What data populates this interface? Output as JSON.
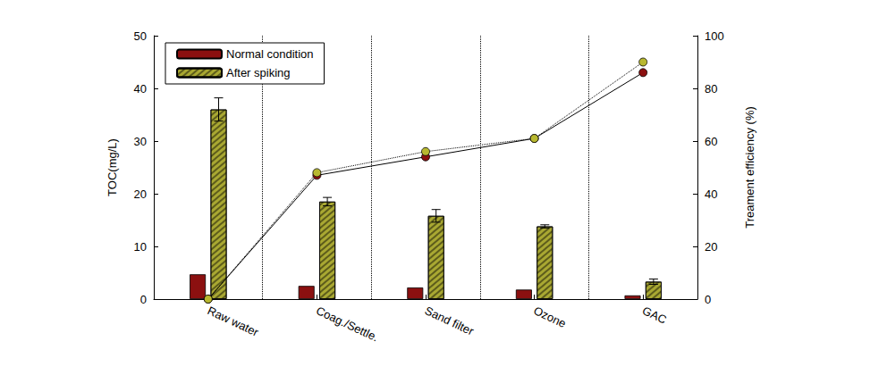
{
  "chart_data": {
    "type": "bar",
    "categories": [
      "Raw water",
      "Coag./Settle.",
      "Sand filter",
      "Ozone",
      "GAC"
    ],
    "y_label": "TOC(mg/L)",
    "y2_label": "Treament efficiency (%)",
    "ylim": [
      0,
      50
    ],
    "yticks": [
      0,
      10,
      20,
      30,
      40,
      50
    ],
    "y2lim": [
      0,
      100
    ],
    "y2ticks": [
      0,
      20,
      40,
      60,
      80,
      100
    ],
    "grid": true,
    "legend": "upper left",
    "series": [
      {
        "name": "Normal condition",
        "type": "bar",
        "color": "#8b1010",
        "values": [
          4.7,
          2.5,
          2.2,
          1.8,
          0.7
        ]
      },
      {
        "name": "After spiking",
        "type": "bar",
        "color": "#a9a832",
        "values": [
          36,
          18.5,
          15.8,
          13.8,
          3.3
        ],
        "errors": [
          2.2,
          0.8,
          1.2,
          0.3,
          0.5
        ]
      },
      {
        "name": "Normal condition",
        "type": "line",
        "axis": "y2",
        "color": "#8b1010",
        "marker": "circle",
        "line_style": "solid",
        "values": [
          0,
          47,
          54,
          61,
          86
        ]
      },
      {
        "name": "After spiking",
        "type": "line",
        "axis": "y2",
        "color": "#b8b830",
        "marker": "circle",
        "line_style": "dotted",
        "values": [
          0,
          48,
          56,
          61,
          90
        ]
      }
    ]
  }
}
